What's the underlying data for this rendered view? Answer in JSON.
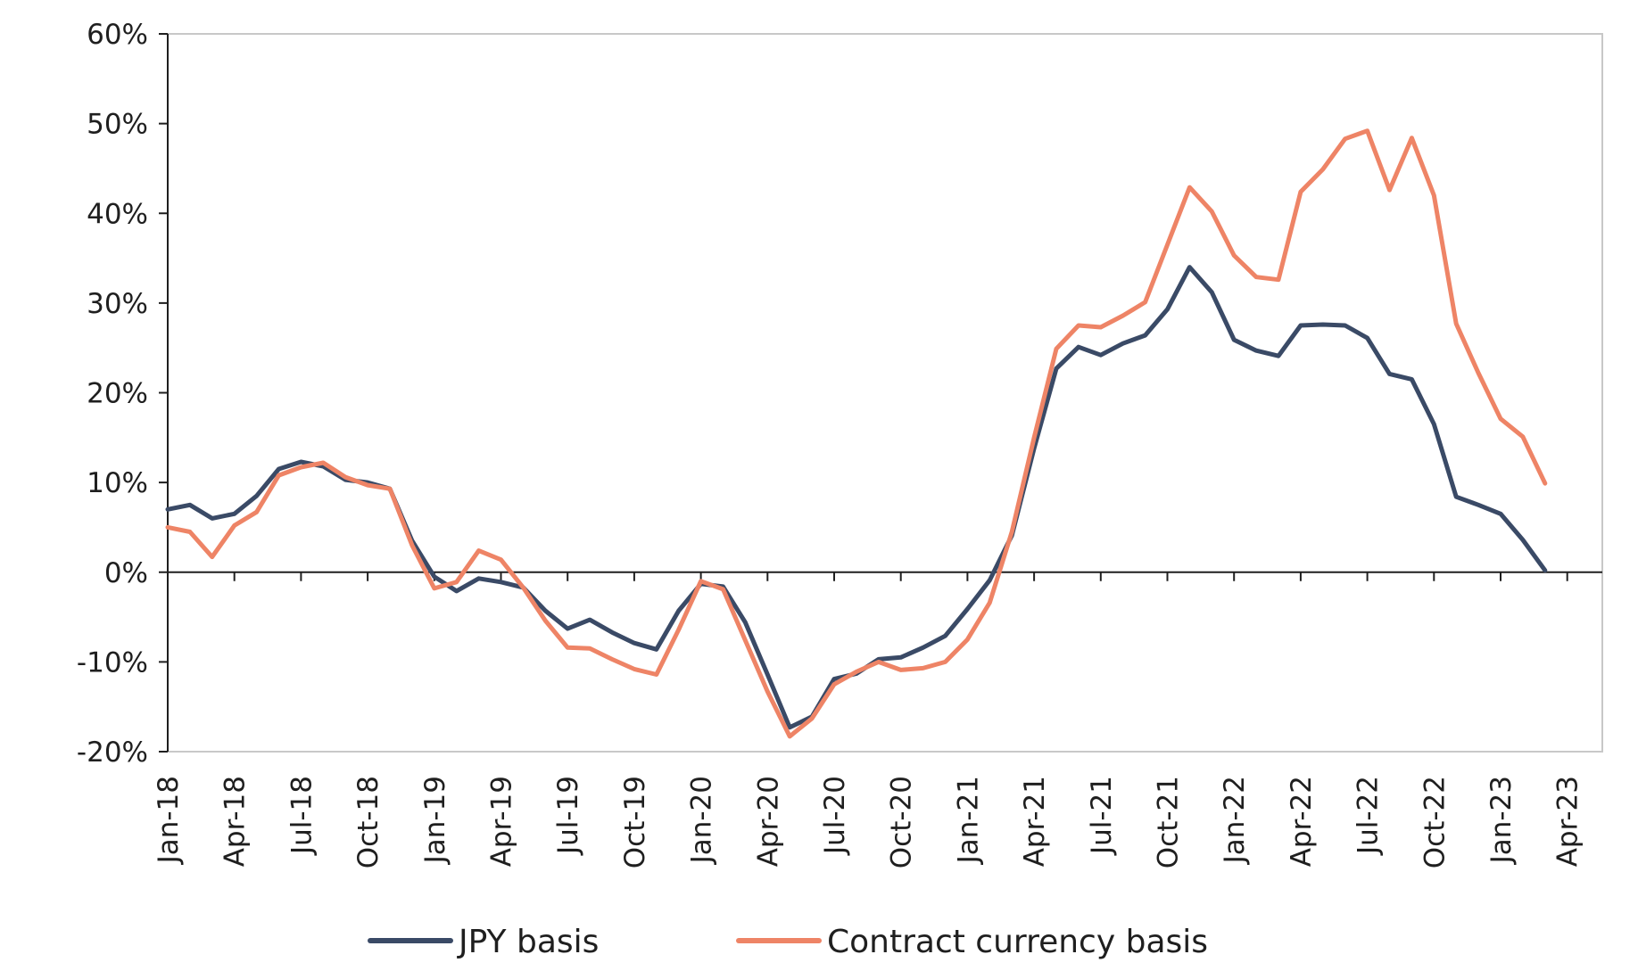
{
  "chart_data": {
    "type": "line",
    "x": [
      "Jan-18",
      "Feb-18",
      "Mar-18",
      "Apr-18",
      "May-18",
      "Jun-18",
      "Jul-18",
      "Aug-18",
      "Sep-18",
      "Oct-18",
      "Nov-18",
      "Dec-18",
      "Jan-19",
      "Feb-19",
      "Mar-19",
      "Apr-19",
      "May-19",
      "Jun-19",
      "Jul-19",
      "Aug-19",
      "Sep-19",
      "Oct-19",
      "Nov-19",
      "Dec-19",
      "Jan-20",
      "Feb-20",
      "Mar-20",
      "Apr-20",
      "May-20",
      "Jun-20",
      "Jul-20",
      "Aug-20",
      "Sep-20",
      "Oct-20",
      "Nov-20",
      "Dec-20",
      "Jan-21",
      "Feb-21",
      "Mar-21",
      "Apr-21",
      "May-21",
      "Jun-21",
      "Jul-21",
      "Aug-21",
      "Sep-21",
      "Oct-21",
      "Nov-21",
      "Dec-21",
      "Jan-22",
      "Feb-22",
      "Mar-22",
      "Apr-22",
      "May-22",
      "Jun-22",
      "Jul-22",
      "Aug-22",
      "Sep-22",
      "Oct-22",
      "Nov-22",
      "Dec-22",
      "Jan-23",
      "Feb-23",
      "Mar-23"
    ],
    "x_tick_labels": [
      "Jan-18",
      "Apr-18",
      "Jul-18",
      "Oct-18",
      "Jan-19",
      "Apr-19",
      "Jul-19",
      "Oct-19",
      "Jan-20",
      "Apr-20",
      "Jul-20",
      "Oct-20",
      "Jan-21",
      "Apr-21",
      "Jul-21",
      "Oct-21",
      "Jan-22",
      "Apr-22",
      "Jul-22",
      "Oct-22",
      "Jan-23",
      "Apr-23"
    ],
    "y_tick_labels": [
      "60%",
      "50%",
      "40%",
      "30%",
      "20%",
      "10%",
      "0%",
      "-10%",
      "-20%"
    ],
    "y_ticks": [
      60,
      50,
      40,
      30,
      20,
      10,
      0,
      -10,
      -20
    ],
    "ylim": [
      -20,
      60
    ],
    "y_unit": "%",
    "grid": false,
    "legend_position": "bottom",
    "series": [
      {
        "name": "JPY basis",
        "color": "#3a4a66",
        "values": [
          7.0,
          7.5,
          6.0,
          6.5,
          8.5,
          11.5,
          12.3,
          11.8,
          10.3,
          10.0,
          9.3,
          3.5,
          -0.5,
          -2.1,
          -0.7,
          -1.1,
          -1.7,
          -4.3,
          -6.3,
          -5.3,
          -6.7,
          -7.9,
          -8.6,
          -4.3,
          -1.3,
          -1.6,
          -5.6,
          -11.4,
          -17.3,
          -16.1,
          -11.9,
          -11.3,
          -9.7,
          -9.5,
          -8.4,
          -7.1,
          -4.1,
          -0.9,
          4.1,
          13.8,
          22.7,
          25.1,
          24.2,
          25.5,
          26.4,
          29.3,
          34.0,
          31.2,
          25.9,
          24.7,
          24.1,
          27.5,
          27.6,
          27.5,
          26.1,
          22.1,
          21.5,
          16.5,
          8.4,
          7.5,
          6.5,
          3.6,
          0.2
        ]
      },
      {
        "name": "Contract currency basis",
        "color": "#ee8466",
        "values": [
          5.0,
          4.5,
          1.7,
          5.2,
          6.7,
          10.8,
          11.7,
          12.2,
          10.6,
          9.7,
          9.3,
          3.0,
          -1.8,
          -1.1,
          2.4,
          1.4,
          -1.7,
          -5.4,
          -8.4,
          -8.5,
          -9.7,
          -10.8,
          -11.4,
          -6.4,
          -1.0,
          -1.9,
          -7.6,
          -13.3,
          -18.3,
          -16.3,
          -12.5,
          -11.1,
          -10.0,
          -10.9,
          -10.7,
          -10.0,
          -7.5,
          -3.4,
          4.5,
          15.0,
          24.9,
          27.5,
          27.3,
          28.6,
          30.1,
          36.5,
          42.9,
          40.2,
          35.3,
          32.9,
          32.6,
          42.4,
          44.9,
          48.3,
          49.2,
          42.6,
          48.4,
          42.0,
          27.7,
          22.2,
          17.1,
          15.1,
          9.9
        ]
      }
    ]
  },
  "legend": {
    "items": [
      "JPY basis",
      "Contract currency basis"
    ]
  }
}
